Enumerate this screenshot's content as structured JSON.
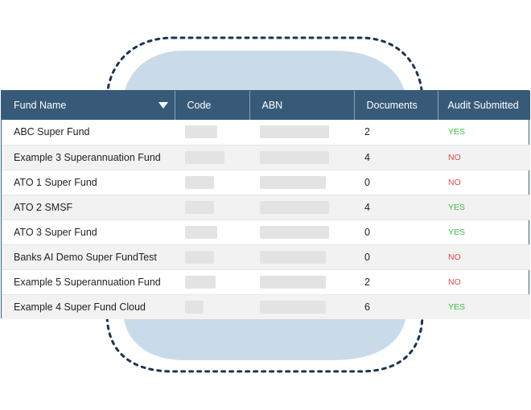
{
  "colors": {
    "header_bg": "#375a78",
    "header_text": "#ffffff",
    "blob_fill": "#c9dbe8",
    "dashed_outline": "#1c3550",
    "yes": "#3fbf3f",
    "no": "#e0484a",
    "redacted_placeholder": "#e3e3e3"
  },
  "table": {
    "headers": {
      "fund_name": "Fund Name",
      "code": "Code",
      "abn": "ABN",
      "documents": "Documents",
      "audit_submitted": "Audit Submitted"
    },
    "sort_icon": "caret-down-icon",
    "rows": [
      {
        "fund_name": "ABC Super Fund",
        "documents": "2",
        "audit": "YES",
        "status": "yes"
      },
      {
        "fund_name": "Example 3 Superannuation Fund",
        "documents": "4",
        "audit": "NO",
        "status": "no"
      },
      {
        "fund_name": "ATO 1 Super Fund",
        "documents": "0",
        "audit": "NO",
        "status": "no"
      },
      {
        "fund_name": "ATO 2 SMSF",
        "documents": "4",
        "audit": "YES",
        "status": "yes"
      },
      {
        "fund_name": "ATO 3 Super Fund",
        "documents": "0",
        "audit": "YES",
        "status": "yes"
      },
      {
        "fund_name": "Banks AI Demo Super FundTest",
        "documents": "0",
        "audit": "NO",
        "status": "no"
      },
      {
        "fund_name": "Example 5 Superannuation Fund",
        "documents": "2",
        "audit": "NO",
        "status": "no"
      },
      {
        "fund_name": "Example 4 Super Fund Cloud",
        "documents": "6",
        "audit": "YES",
        "status": "yes"
      }
    ]
  }
}
